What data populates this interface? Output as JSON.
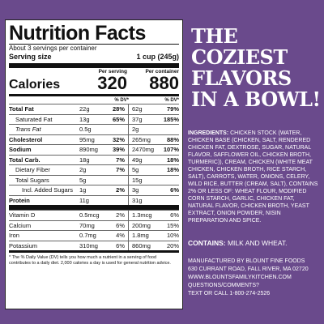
{
  "label": {
    "title": "Nutrition Facts",
    "servings": "About 3 servings per container",
    "serving_size_label": "Serving size",
    "serving_size_value": "1 cup (245g)",
    "calories_label": "Calories",
    "per_serving_label": "Per serving",
    "per_container_label": "Per container",
    "calories_serving": "320",
    "calories_container": "880",
    "dv_label_1": "% DV*",
    "dv_label_2": "% DV*",
    "rows": [
      {
        "name": "Total Fat",
        "a": "22g",
        "b": "28%",
        "c": "62g",
        "d": "79%"
      },
      {
        "name": "Saturated Fat",
        "a": "13g",
        "b": "65%",
        "c": "37g",
        "d": "185%"
      },
      {
        "name": "Trans Fat",
        "a": "0.5g",
        "b": "",
        "c": "2g",
        "d": ""
      },
      {
        "name": "Cholesterol",
        "a": "95mg",
        "b": "32%",
        "c": "265mg",
        "d": "88%"
      },
      {
        "name": "Sodium",
        "a": "890mg",
        "b": "39%",
        "c": "2470mg",
        "d": "107%"
      },
      {
        "name": "Total Carb.",
        "a": "18g",
        "b": "7%",
        "c": "49g",
        "d": "18%"
      },
      {
        "name": "Dietary Fiber",
        "a": "2g",
        "b": "7%",
        "c": "5g",
        "d": "18%"
      },
      {
        "name": "Total Sugars",
        "a": "5g",
        "b": "",
        "c": "15g",
        "d": ""
      },
      {
        "name": "Incl. Added Sugars",
        "a": "1g",
        "b": "2%",
        "c": "3g",
        "d": "6%"
      },
      {
        "name": "Protein",
        "a": "11g",
        "b": "",
        "c": "31g",
        "d": ""
      }
    ],
    "vitamins": [
      {
        "name": "Vitamin D",
        "a": "0.5mcg",
        "b": "2%",
        "c": "1.3mcg",
        "d": "6%"
      },
      {
        "name": "Calcium",
        "a": "70mg",
        "b": "6%",
        "c": "200mg",
        "d": "15%"
      },
      {
        "name": "Iron",
        "a": "0.7mg",
        "b": "4%",
        "c": "1.8mg",
        "d": "10%"
      },
      {
        "name": "Potassium",
        "a": "310mg",
        "b": "6%",
        "c": "860mg",
        "d": "20%"
      }
    ],
    "footnote": "* The % Daily Value (DV) tells you how much a nutrient in a serving of food contributes to a daily diet. 2,000 calories a day is used for general nutrition advice."
  },
  "headline": "THE COZIEST FLAVORS IN A BOWL!",
  "ingredients_label": "INGREDIENTS:",
  "ingredients_text": "CHICKEN STOCK (WATER, CHICKEN BASE (CHICKEN, SALT, RENDERED CHICKEN FAT, DEXTROSE, SUGAR, NATURAL FLAVOR, SAFFLOWER OIL, CHICKEN BROTH, TURMERIC)), CREAM, CHICKEN (WHITE MEAT CHICKEN, CHICKEN BROTH, RICE STARCH, SALT), CARROTS, WATER, ONIONS, CELERY, WILD RICE, BUTTER (CREAM, SALT), CONTAINS 2% OR LESS OF: WHEAT FLOUR, MODIFIED CORN STARCH, GARLIC, CHICKEN FAT, NATURAL FLAVOR, CHICKEN BROTH, YEAST EXTRACT, ONION POWDER, NISIN PREPARATION AND SPICE.",
  "contains_label": "CONTAINS:",
  "contains_text": "MILK AND WHEAT.",
  "manufacturer": [
    "MANUFACTURED BY BLOUNT FINE FOODS",
    "630 CURRANT ROAD, FALL RIVER, MA 02720",
    "WWW.BLOUNTSFAMILYKITCHEN.COM",
    "QUESTIONS/COMMENTS?",
    "TEXT OR CALL 1-800-274-2526"
  ]
}
